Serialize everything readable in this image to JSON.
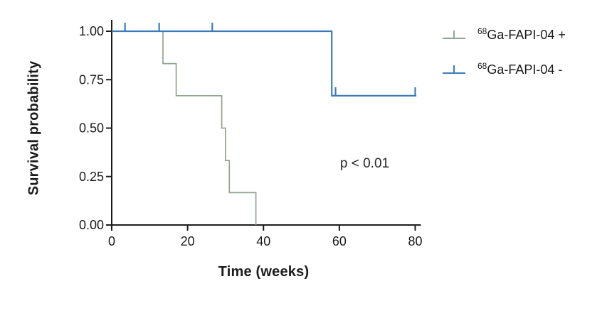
{
  "chart_data": {
    "type": "line",
    "subtype": "kaplan-meier-step",
    "title": "",
    "xlabel": "Time  (weeks)",
    "ylabel": "Survival probability",
    "annotation": "p < 0.01",
    "xlim": [
      0,
      80
    ],
    "ylim": [
      0,
      1
    ],
    "x_ticks": [
      0,
      20,
      40,
      60,
      80
    ],
    "y_ticks": [
      "1.00",
      "0.75",
      "0.50",
      "0.25",
      "0.00"
    ],
    "grid": false,
    "legend_position": "right-outside",
    "axis_color": "#1b1b1b",
    "series": [
      {
        "name": "68Ga-FAPI-04 +",
        "color": "#8fa690",
        "line_width": 1.7,
        "steps": [
          [
            0,
            1
          ],
          [
            13.5,
            1
          ],
          [
            13.5,
            0.833
          ],
          [
            17,
            0.833
          ],
          [
            17,
            0.667
          ],
          [
            29,
            0.667
          ],
          [
            29,
            0.5
          ],
          [
            30,
            0.5
          ],
          [
            30,
            0.333
          ],
          [
            31,
            0.333
          ],
          [
            31,
            0.167
          ],
          [
            38,
            0.167
          ],
          [
            38,
            0
          ]
        ],
        "censor_marks": []
      },
      {
        "name": "68Ga-FAPI-04 -",
        "color": "#3b7cb8",
        "line_width": 2.2,
        "steps": [
          [
            0,
            1
          ],
          [
            58,
            1
          ],
          [
            58,
            0.667
          ],
          [
            80.3,
            0.667
          ]
        ],
        "censor_marks": [
          [
            3.5,
            1
          ],
          [
            12.5,
            1
          ],
          [
            26.5,
            1
          ],
          [
            59,
            0.667
          ],
          [
            80,
            0.667
          ]
        ]
      }
    ],
    "legend": [
      {
        "sup": "68",
        "text": "Ga-FAPI-04 +",
        "color": "#8fa690"
      },
      {
        "sup": "68",
        "text": "Ga-FAPI-04 -",
        "color": "#3b7cb8"
      }
    ]
  }
}
